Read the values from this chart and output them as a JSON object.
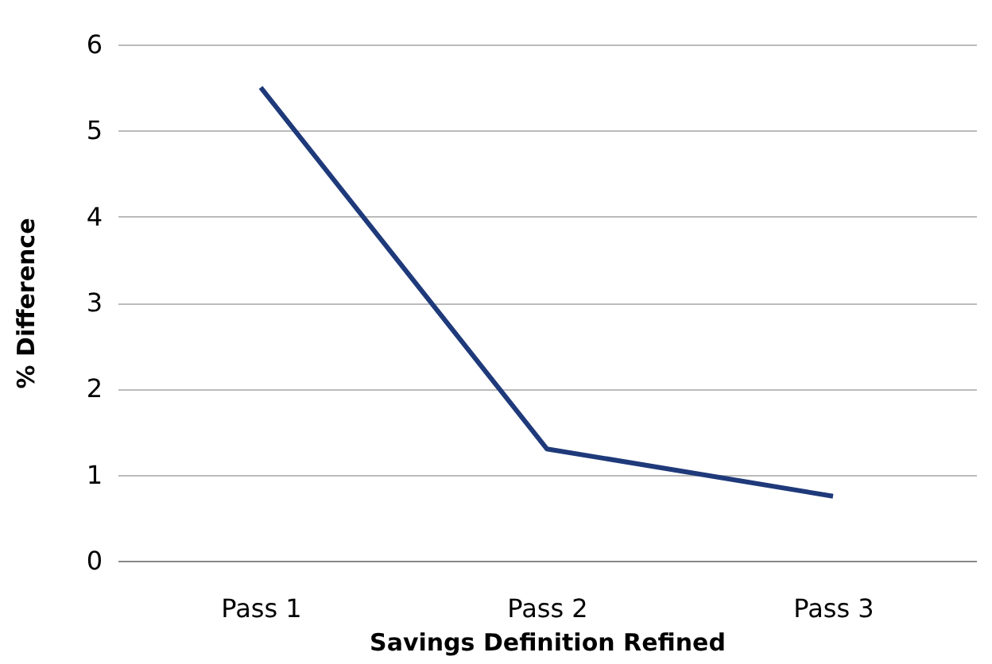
{
  "chart_data": {
    "type": "line",
    "xlabel": "Savings Definition Refined",
    "ylabel": "% Difference",
    "categories": [
      "Pass 1",
      "Pass 2",
      "Pass 3"
    ],
    "series": [
      {
        "color": "#1f3a7a",
        "values": [
          5.5,
          1.3,
          0.75
        ]
      }
    ],
    "ylim": [
      0,
      6
    ],
    "yticks": [
      0,
      1,
      2,
      3,
      4,
      5,
      6
    ],
    "grid": "y",
    "marker": "none",
    "line_style": "solid"
  }
}
